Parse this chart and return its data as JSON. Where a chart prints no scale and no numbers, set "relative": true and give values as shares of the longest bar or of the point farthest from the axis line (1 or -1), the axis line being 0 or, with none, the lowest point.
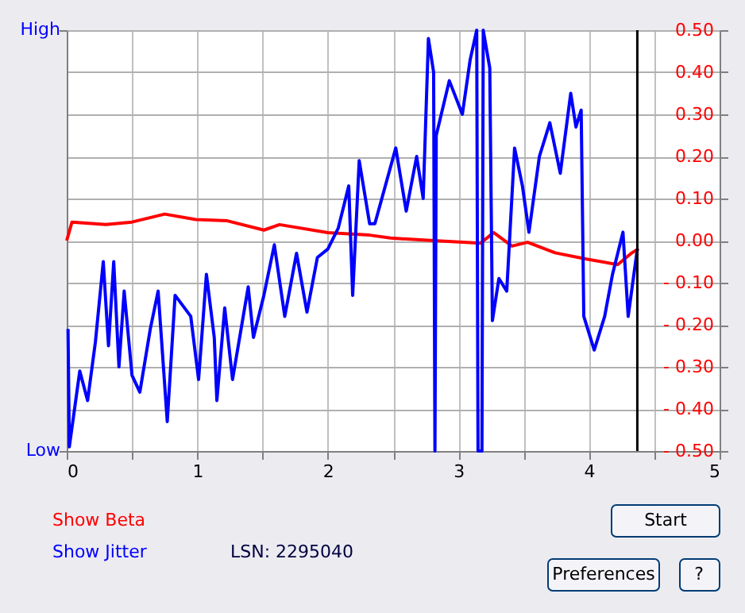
{
  "chart_data": {
    "type": "line",
    "xlim": [
      0,
      5
    ],
    "xticks": [
      0,
      {
        "value": 0.5,
        "label": null
      },
      1,
      {
        "value": 1.5,
        "label": null
      },
      2,
      {
        "value": 2.5,
        "label": null
      },
      3,
      {
        "value": 3.5,
        "label": null
      },
      4,
      {
        "value": 4.5,
        "label": null
      },
      5
    ],
    "y2lim": [
      -0.5,
      0.5
    ],
    "y2ticks": [
      {
        "value": 0.5,
        "label": "0.50"
      },
      {
        "value": 0.4,
        "label": "0.40"
      },
      {
        "value": 0.3,
        "label": "0.30"
      },
      {
        "value": 0.2,
        "label": "0.20"
      },
      {
        "value": 0.1,
        "label": "0.10"
      },
      {
        "value": 0,
        "label": "0.00"
      },
      {
        "value": -0.1,
        "label": "- 0.10"
      },
      {
        "value": -0.2,
        "label": "- 0.20"
      },
      {
        "value": -0.3,
        "label": "- 0.30"
      },
      {
        "value": -0.4,
        "label": "- 0.40"
      },
      {
        "value": -0.5,
        "label": "- 0.50"
      }
    ],
    "relative": true,
    "grid": true,
    "legend": "bottom left",
    "line_style": "solid",
    "ref_lines": [
      {
        "axis": "x",
        "value": 4.37,
        "color": "#000000"
      }
    ],
    "annotations": [
      "High",
      "Low",
      "LSN:  2295040",
      "Start",
      "Preferences",
      "?"
    ],
    "series": [
      {
        "name": "Show Beta",
        "color": "#ff0000",
        "axis": "y2",
        "x": [
          0.0,
          0.04,
          0.3,
          0.5,
          0.75,
          0.99,
          1.23,
          1.51,
          1.63,
          2.0,
          2.32,
          2.48,
          2.81,
          3.17,
          3.27,
          3.41,
          3.53,
          3.74,
          3.98,
          4.22,
          4.32,
          4.38
        ],
        "values": [
          0.0,
          0.044,
          0.038,
          0.044,
          0.063,
          0.05,
          0.047,
          0.025,
          0.038,
          0.019,
          0.013,
          0.006,
          0.0,
          -0.006,
          0.019,
          -0.013,
          -0.004,
          -0.029,
          -0.044,
          -0.057,
          -0.031,
          -0.019
        ]
      },
      {
        "name": "Show Jitter",
        "color": "#0000ff",
        "x": [
          0.01,
          0.02,
          0.1,
          0.16,
          0.22,
          0.28,
          0.32,
          0.36,
          0.4,
          0.44,
          0.5,
          0.56,
          0.64,
          0.7,
          0.77,
          0.83,
          0.95,
          1.01,
          1.07,
          1.13,
          1.15,
          1.21,
          1.27,
          1.39,
          1.43,
          1.51,
          1.59,
          1.67,
          1.76,
          1.84,
          1.92,
          2.0,
          2.08,
          2.16,
          2.19,
          2.24,
          2.32,
          2.36,
          2.52,
          2.6,
          2.68,
          2.73,
          2.77,
          2.81,
          2.82,
          2.83,
          2.93,
          3.03,
          3.09,
          3.14,
          3.15,
          3.18,
          3.19,
          3.24,
          3.26,
          3.31,
          3.37,
          3.43,
          3.49,
          3.54,
          3.62,
          3.7,
          3.78,
          3.86,
          3.9,
          3.94,
          3.96,
          4.04,
          4.12,
          4.18,
          4.26,
          4.3,
          4.37
        ],
        "values": [
          0.29,
          0.01,
          0.19,
          0.12,
          0.26,
          0.45,
          0.25,
          0.45,
          0.2,
          0.38,
          0.18,
          0.14,
          0.29,
          0.38,
          0.07,
          0.37,
          0.32,
          0.17,
          0.42,
          0.27,
          0.12,
          0.34,
          0.17,
          0.39,
          0.27,
          0.37,
          0.49,
          0.32,
          0.47,
          0.33,
          0.46,
          0.48,
          0.53,
          0.63,
          0.37,
          0.69,
          0.54,
          0.54,
          0.72,
          0.57,
          0.7,
          0.6,
          0.98,
          0.9,
          0.0,
          0.75,
          0.88,
          0.8,
          0.93,
          1.0,
          0.0,
          0.0,
          1.0,
          0.91,
          0.31,
          0.41,
          0.38,
          0.72,
          0.63,
          0.52,
          0.7,
          0.78,
          0.66,
          0.85,
          0.77,
          0.81,
          0.32,
          0.24,
          0.32,
          0.42,
          0.52,
          0.32,
          0.48
        ]
      }
    ]
  }
}
